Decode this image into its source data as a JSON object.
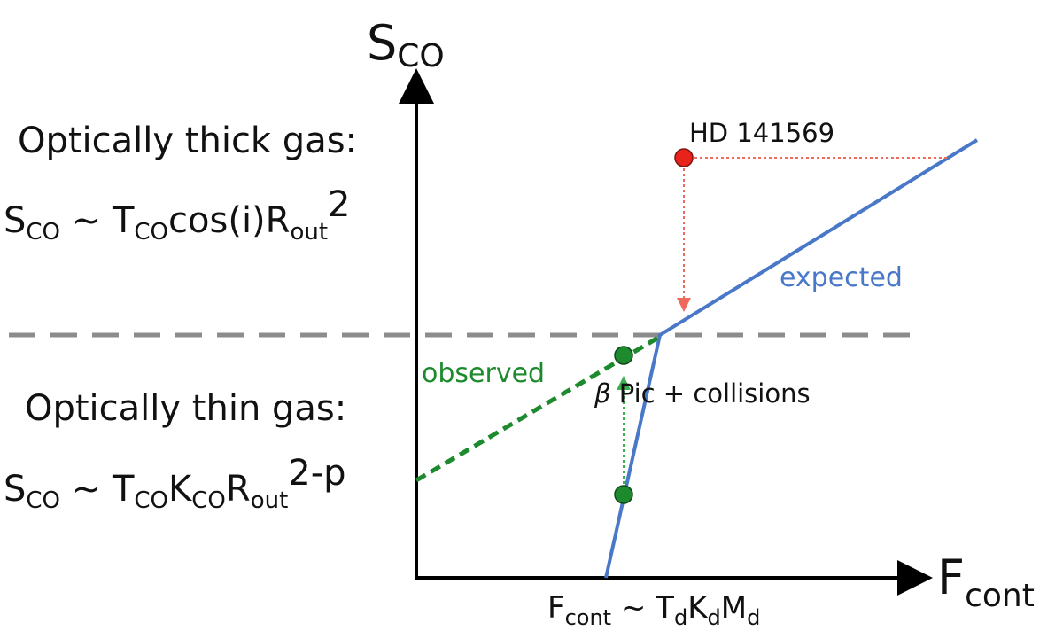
{
  "diagram": {
    "y_axis_label": {
      "main": "S",
      "sub": "CO"
    },
    "x_axis_label": {
      "main": "F",
      "sub": "cont"
    },
    "x_axis_relation": {
      "lhs_main": "F",
      "lhs_sub": "cont",
      "rhs_T": "T",
      "rhs_T_sub": "d",
      "rhs_K": "K",
      "rhs_K_sub": "d",
      "rhs_M": "M",
      "rhs_M_sub": "d",
      "tilde": " ~ "
    },
    "thick_regime": {
      "heading": "Optically thick gas:",
      "eq": {
        "s": "S",
        "s_sub": "CO",
        "tilde": " ~ ",
        "t": "T",
        "t_sub": "CO",
        "mid": "cos(i)R",
        "r_sub": "out",
        "sup": "2"
      }
    },
    "thin_regime": {
      "heading": "Optically thin gas:",
      "eq": {
        "s": "S",
        "s_sub": "CO",
        "tilde": " ~ ",
        "t": "T",
        "t_sub": "CO",
        "k": "K",
        "k_sub": "CO",
        "r": "R",
        "r_sub": "out",
        "sup": "2-p"
      }
    },
    "labels": {
      "expected": "expected",
      "observed": "observed",
      "beta": "β",
      "beta_pic": " Pic + collisions",
      "hd": "HD 141569"
    },
    "colors": {
      "axes": "#000000",
      "expected_line": "#4a78c9",
      "observed_line": "#1e8a2e",
      "threshold": "#8c8c8c",
      "hd_point": "#e8231c",
      "beta_point": "#1e8a2e",
      "hd_arrow": "#f06a5c",
      "beta_arrow": "#3fae4f"
    }
  }
}
